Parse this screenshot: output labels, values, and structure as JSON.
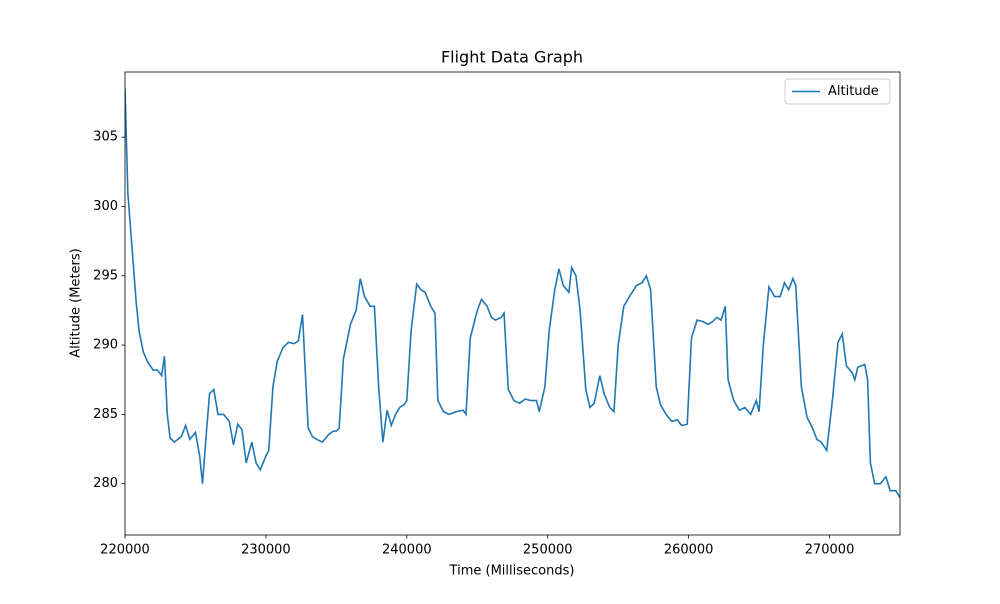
{
  "chart_data": {
    "type": "line",
    "title": "Flight Data Graph",
    "x_label": "Time (Milliseconds)",
    "y_label": "Altitude (Meters)",
    "x": [
      220000,
      220200,
      220500,
      220800,
      221000,
      221300,
      221600,
      222000,
      222300,
      222600,
      222800,
      223000,
      223200,
      223500,
      224000,
      224300,
      224600,
      225000,
      225300,
      225500,
      225800,
      226000,
      226300,
      226600,
      227000,
      227400,
      227700,
      228000,
      228300,
      228600,
      229000,
      229300,
      229600,
      230000,
      230200,
      230500,
      230800,
      231200,
      231600,
      232000,
      232300,
      232600,
      232800,
      233000,
      233300,
      233600,
      234000,
      234500,
      234800,
      235000,
      235200,
      235500,
      236000,
      236400,
      236700,
      237000,
      237400,
      237700,
      238000,
      238300,
      238600,
      238900,
      239200,
      239500,
      239800,
      240000,
      240300,
      240700,
      241000,
      241300,
      241700,
      242000,
      242200,
      242600,
      243000,
      243500,
      244000,
      244200,
      244500,
      245000,
      245300,
      245700,
      246000,
      246300,
      246700,
      246900,
      247200,
      247600,
      248000,
      248400,
      248800,
      249200,
      249400,
      249800,
      250100,
      250500,
      250800,
      251100,
      251500,
      251700,
      252000,
      252300,
      252700,
      253000,
      253300,
      253700,
      254000,
      254400,
      254700,
      255000,
      255400,
      255800,
      256300,
      256700,
      257000,
      257300,
      257700,
      258000,
      258400,
      258800,
      259200,
      259500,
      259900,
      260200,
      260600,
      261000,
      261400,
      261700,
      262000,
      262300,
      262600,
      262800,
      263200,
      263600,
      264000,
      264400,
      264800,
      265000,
      265300,
      265700,
      266100,
      266500,
      266800,
      267100,
      267400,
      267600,
      268000,
      268400,
      268800,
      269100,
      269400,
      269800,
      270200,
      270600,
      270900,
      271200,
      271600,
      271800,
      272000,
      272500,
      272700,
      272900,
      273200,
      273600,
      274000,
      274300,
      274700,
      275000
    ],
    "series": [
      {
        "name": "Altitude",
        "color": "#1f77b4",
        "values": [
          308.5,
          301,
          297,
          293,
          291,
          289.5,
          288.8,
          288.2,
          288.2,
          287.8,
          289.2,
          285,
          283.3,
          283,
          283.4,
          284.2,
          283.2,
          283.7,
          282,
          280,
          284,
          286.5,
          286.8,
          285,
          285,
          284.5,
          282.8,
          284.3,
          283.9,
          281.5,
          283,
          281.5,
          281,
          282,
          282.4,
          287,
          288.8,
          289.8,
          290.2,
          290.1,
          290.3,
          292.2,
          288,
          284,
          283.4,
          283.2,
          283,
          283.6,
          283.8,
          283.8,
          284,
          289,
          291.5,
          292.5,
          294.8,
          293.5,
          292.8,
          292.8,
          287,
          283,
          285.3,
          284.2,
          285,
          285.5,
          285.7,
          286,
          291,
          294.4,
          294,
          293.8,
          292.8,
          292.3,
          286,
          285.2,
          285,
          285.2,
          285.3,
          285,
          290.5,
          292.5,
          293.3,
          292.8,
          292,
          291.8,
          292,
          292.3,
          286.8,
          286,
          285.8,
          286.1,
          286,
          286,
          285.2,
          287,
          291,
          294,
          295.5,
          294.3,
          293.8,
          295.6,
          295,
          292.5,
          286.8,
          285.5,
          285.8,
          287.8,
          286.5,
          285.5,
          285.2,
          290,
          292.8,
          293.5,
          294.3,
          294.5,
          295,
          294,
          287,
          285.7,
          285,
          284.5,
          284.6,
          284.2,
          284.3,
          290.5,
          291.8,
          291.7,
          291.5,
          291.7,
          292,
          291.8,
          292.8,
          287.5,
          286,
          285.3,
          285.5,
          285,
          286,
          285.2,
          290,
          294.2,
          293.5,
          293.5,
          294.5,
          294,
          294.8,
          294.3,
          287,
          284.8,
          284,
          283.2,
          283,
          282.4,
          286,
          290.2,
          290.8,
          288.5,
          288,
          287.5,
          288.4,
          288.6,
          287.5,
          281.5,
          280,
          280,
          280.5,
          279.5,
          279.5,
          279
        ]
      }
    ],
    "xlim": [
      220000,
      275000
    ],
    "ylim": [
      276.3,
      309.7
    ],
    "xticks": [
      220000,
      230000,
      240000,
      250000,
      260000,
      270000
    ],
    "yticks": [
      280,
      285,
      290,
      295,
      300,
      305
    ],
    "legend": "upper right",
    "grid": false
  }
}
